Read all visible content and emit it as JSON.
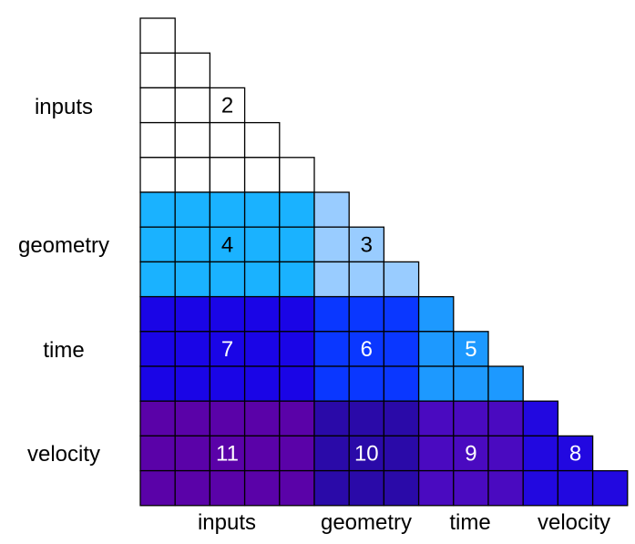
{
  "blocks": [
    "inputs",
    "geometry",
    "time",
    "velocity"
  ],
  "block_sizes": [
    5,
    3,
    3,
    3
  ],
  "row_labels": [
    "inputs",
    "geometry",
    "time",
    "velocity"
  ],
  "col_labels": [
    "inputs",
    "geometry",
    "time",
    "velocity"
  ],
  "cells": [
    {
      "row": 0,
      "col": 0,
      "value": "2",
      "fill": "#ffffff",
      "text_color": "#000000"
    },
    {
      "row": 1,
      "col": 0,
      "value": "4",
      "fill": "#1ab2ff",
      "text_color": "#000000"
    },
    {
      "row": 1,
      "col": 1,
      "value": "3",
      "fill": "#99ccff",
      "text_color": "#000000"
    },
    {
      "row": 2,
      "col": 0,
      "value": "7",
      "fill": "#1a05e6",
      "text_color": "#ffffff"
    },
    {
      "row": 2,
      "col": 1,
      "value": "6",
      "fill": "#0a37ff",
      "text_color": "#ffffff"
    },
    {
      "row": 2,
      "col": 2,
      "value": "5",
      "fill": "#1d99ff",
      "text_color": "#ffffff"
    },
    {
      "row": 3,
      "col": 0,
      "value": "11",
      "fill": "#5a02a8",
      "text_color": "#ffffff"
    },
    {
      "row": 3,
      "col": 1,
      "value": "10",
      "fill": "#2a0aa8",
      "text_color": "#ffffff"
    },
    {
      "row": 3,
      "col": 2,
      "value": "9",
      "fill": "#4a0ac0",
      "text_color": "#ffffff"
    },
    {
      "row": 3,
      "col": 3,
      "value": "8",
      "fill": "#2208e0",
      "text_color": "#ffffff"
    }
  ]
}
